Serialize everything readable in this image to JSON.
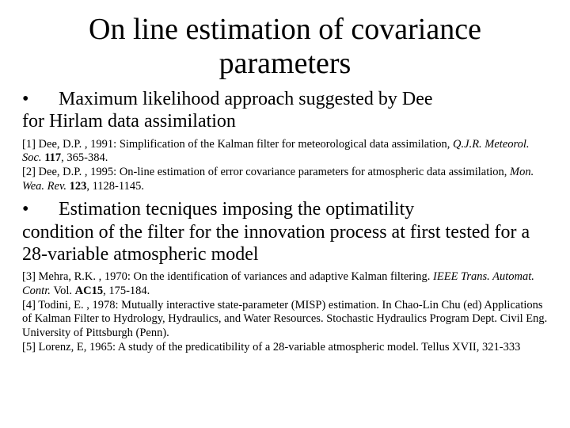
{
  "title": "On line estimation of covariance parameters",
  "bullet1": {
    "dot": "•",
    "text_a": "Maximum likelihood approach suggested by Dee",
    "text_b": "for Hirlam data assimilation"
  },
  "refs1": {
    "r1_a": "[1] Dee, D.P. , 1991: Simplification of the Kalman filter for meteorological data assimilation, ",
    "r1_b": "Q.J.R. Meteorol. Soc. ",
    "r1_c": "117",
    "r1_d": ", 365-384.",
    "r2_a": "[2] Dee, D.P. , 1995: On-line estimation of error covariance parameters for atmospheric data assimilation, ",
    "r2_b": "Mon. Wea. Rev. ",
    "r2_c": "123",
    "r2_d": ", 1128-1145."
  },
  "bullet2": {
    "dot": "•",
    "text_a": "Estimation tecniques imposing the optimatility",
    "text_b": "condition of the filter for the innovation process at first tested for a 28-variable atmospheric model"
  },
  "refs2": {
    "r3_a": "[3] Mehra, R.K. , 1970: On the identification of variances and adaptive Kalman filtering. ",
    "r3_b": "IEEE Trans. Automat. Contr. ",
    "r3_c": "Vol. ",
    "r3_d": "AC15",
    "r3_e": ", 175-184.",
    "r4_a": "[4] Todini, E. , 1978: Mutually interactive state-parameter (MISP) estimation. In Chao-Lin Chu (ed) Applications of Kalman Filter to Hydrology, Hydraulics, and Water Resources. Stochastic Hydraulics Program Dept. Civil Eng. University of Pittsburgh (Penn).",
    "r5_a": "[5] Lorenz, E, 1965: A study of the predicatibility of a 28-variable atmospheric model. Tellus XVII, 321-333"
  }
}
